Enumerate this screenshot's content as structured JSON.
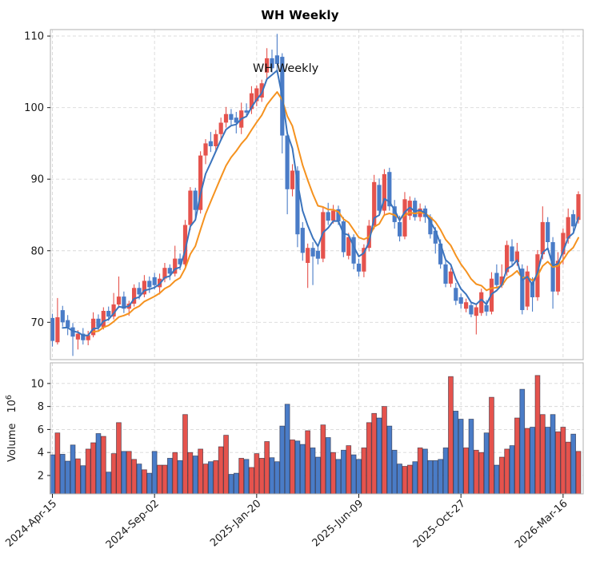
{
  "title": "WH  Weekly",
  "annotation": "WH  Weekly",
  "colors": {
    "up": "#e5534d",
    "down": "#4a7cc7",
    "ma_fast": "#3b74bd",
    "ma_slow": "#f5921f",
    "grid": "#d8d8d8",
    "spine": "#b0b0b0",
    "text": "#1a1a1a",
    "volume_bar_edge": "rgba(25,25,45,0.6)",
    "background": "#ffffff"
  },
  "price_axis": {
    "ticks": [
      70,
      80,
      90,
      100,
      110
    ],
    "range": [
      64.8,
      110.9
    ]
  },
  "volume_axis": {
    "label": "Volume",
    "unit_base": "10",
    "unit_exponent": "6",
    "ticks": [
      2,
      4,
      6,
      8,
      10
    ],
    "range": [
      0.4,
      11.8
    ]
  },
  "x_axis": {
    "tick_weeks": [
      0,
      20,
      40,
      60,
      80,
      100
    ],
    "tick_labels": [
      "2024-Apr-15",
      "2024-Sep-02",
      "2025-Jan-20",
      "2025-Jun-09",
      "2025-Oct-27",
      "2026-Mar-16"
    ]
  },
  "chart_data": {
    "type": "candlestick+volume",
    "title": "WH  Weekly",
    "interval": "weekly",
    "up_color_meaning": "close above open (red)",
    "down_color_meaning": "close below open (blue)",
    "moving_averages": [
      {
        "name": "fast",
        "period": 4,
        "method": "ema",
        "color": "#3b74bd"
      },
      {
        "name": "slow",
        "period": 10,
        "method": "ema",
        "color": "#f5921f"
      }
    ],
    "columns": [
      "date",
      "open",
      "high",
      "low",
      "close",
      "volume_millions"
    ],
    "candles": [
      [
        "2024-04-15",
        70.6,
        71.2,
        66.6,
        67.4,
        3.8
      ],
      [
        "2024-04-22",
        67.2,
        73.4,
        66.9,
        70.7,
        5.7
      ],
      [
        "2024-04-29",
        71.7,
        72.3,
        69.4,
        70.0,
        3.85
      ],
      [
        "2024-05-06",
        70.3,
        71.0,
        68.2,
        69.3,
        3.25
      ],
      [
        "2024-05-13",
        69.3,
        69.9,
        65.3,
        68.0,
        4.65
      ],
      [
        "2024-05-20",
        67.6,
        68.9,
        66.2,
        68.4,
        3.45
      ],
      [
        "2024-05-27",
        68.4,
        69.2,
        66.9,
        67.5,
        2.85
      ],
      [
        "2024-06-03",
        67.5,
        68.8,
        66.8,
        68.2,
        4.3
      ],
      [
        "2024-06-10",
        68.2,
        71.4,
        67.9,
        70.5,
        4.85
      ],
      [
        "2024-06-17",
        70.5,
        71.1,
        68.8,
        69.3,
        5.65
      ],
      [
        "2024-06-24",
        69.3,
        72.1,
        69.0,
        71.6,
        5.4
      ],
      [
        "2024-07-01",
        71.6,
        72.2,
        70.2,
        70.8,
        2.3
      ],
      [
        "2024-07-08",
        70.8,
        74.1,
        70.4,
        72.5,
        3.9
      ],
      [
        "2024-07-15",
        72.5,
        76.4,
        72.0,
        73.6,
        6.6
      ],
      [
        "2024-07-22",
        73.6,
        74.3,
        71.3,
        71.9,
        4.1
      ],
      [
        "2024-07-29",
        71.9,
        73.0,
        70.9,
        72.6,
        4.1
      ],
      [
        "2024-08-05",
        72.6,
        75.3,
        72.2,
        74.8,
        3.4
      ],
      [
        "2024-08-12",
        74.8,
        75.6,
        73.2,
        73.9,
        3.0
      ],
      [
        "2024-08-19",
        73.9,
        76.6,
        73.5,
        75.8,
        2.5
      ],
      [
        "2024-08-26",
        75.8,
        76.4,
        74.1,
        74.9,
        2.2
      ],
      [
        "2024-09-02",
        76.3,
        76.9,
        74.6,
        75.2,
        4.1
      ],
      [
        "2024-09-09",
        74.9,
        76.8,
        73.9,
        76.1,
        2.9
      ],
      [
        "2024-09-16",
        76.1,
        78.3,
        75.6,
        77.6,
        2.9
      ],
      [
        "2024-09-23",
        77.6,
        78.1,
        75.9,
        76.8,
        3.5
      ],
      [
        "2024-09-30",
        76.8,
        80.7,
        76.4,
        78.9,
        4.0
      ],
      [
        "2024-10-07",
        78.9,
        79.6,
        77.3,
        78.1,
        3.3
      ],
      [
        "2024-10-14",
        78.1,
        84.3,
        77.8,
        83.6,
        7.3
      ],
      [
        "2024-10-21",
        83.6,
        88.9,
        82.9,
        88.4,
        4.0
      ],
      [
        "2024-10-28",
        88.4,
        88.8,
        84.6,
        85.7,
        3.7
      ],
      [
        "2024-11-04",
        85.7,
        93.9,
        85.2,
        93.3,
        4.3
      ],
      [
        "2024-11-11",
        93.3,
        95.6,
        92.1,
        95.0,
        3.0
      ],
      [
        "2024-11-18",
        95.3,
        96.6,
        93.8,
        94.6,
        3.2
      ],
      [
        "2024-11-25",
        94.6,
        96.9,
        93.9,
        96.3,
        3.3
      ],
      [
        "2024-12-02",
        96.3,
        98.6,
        95.4,
        97.9,
        4.5
      ],
      [
        "2024-12-09",
        97.9,
        100.1,
        97.2,
        99.1,
        5.5
      ],
      [
        "2024-12-16",
        99.1,
        99.8,
        97.6,
        98.3,
        2.1
      ],
      [
        "2024-12-23",
        98.6,
        99.4,
        96.4,
        97.9,
        2.2
      ],
      [
        "2024-12-30",
        97.2,
        100.7,
        96.3,
        99.6,
        3.5
      ],
      [
        "2025-01-06",
        99.6,
        100.6,
        98.7,
        99.3,
        3.4
      ],
      [
        "2025-01-13",
        99.8,
        103.0,
        99.1,
        102.0,
        2.7
      ],
      [
        "2025-01-20",
        100.9,
        103.1,
        100.2,
        102.7,
        3.9
      ],
      [
        "2025-01-27",
        101.4,
        103.9,
        100.8,
        103.4,
        3.5
      ],
      [
        "2025-02-03",
        104.9,
        108.3,
        103.9,
        106.9,
        4.95
      ],
      [
        "2025-02-10",
        106.9,
        108.1,
        104.9,
        105.5,
        3.55
      ],
      [
        "2025-02-17",
        107.3,
        110.3,
        105.2,
        106.1,
        3.2
      ],
      [
        "2025-02-24",
        107.1,
        107.6,
        93.6,
        96.1,
        6.3
      ],
      [
        "2025-03-03",
        96.1,
        96.6,
        85.1,
        88.6,
        8.2
      ],
      [
        "2025-03-10",
        88.6,
        92.1,
        87.6,
        91.2,
        5.1
      ],
      [
        "2025-03-17",
        91.2,
        91.8,
        80.5,
        82.3,
        5.0
      ],
      [
        "2025-03-24",
        83.2,
        84.0,
        78.6,
        79.7,
        4.7
      ],
      [
        "2025-03-31",
        78.3,
        81.0,
        74.8,
        80.4,
        5.9
      ],
      [
        "2025-04-07",
        80.4,
        81.2,
        75.2,
        79.2,
        4.4
      ],
      [
        "2025-04-14",
        80.0,
        80.8,
        78.1,
        78.9,
        3.6
      ],
      [
        "2025-04-21",
        78.9,
        86.0,
        78.4,
        85.4,
        6.4
      ],
      [
        "2025-04-28",
        85.4,
        86.7,
        83.6,
        84.2,
        5.3
      ],
      [
        "2025-05-05",
        84.2,
        86.4,
        83.8,
        85.6,
        4.0
      ],
      [
        "2025-05-12",
        85.8,
        86.3,
        83.6,
        84.1,
        3.4
      ],
      [
        "2025-05-19",
        84.1,
        84.7,
        79.1,
        79.8,
        4.2
      ],
      [
        "2025-05-26",
        79.3,
        82.5,
        78.8,
        81.9,
        4.6
      ],
      [
        "2025-06-02",
        81.9,
        82.3,
        77.4,
        78.2,
        3.8
      ],
      [
        "2025-06-09",
        78.2,
        78.9,
        76.4,
        77.1,
        3.4
      ],
      [
        "2025-06-16",
        77.1,
        80.9,
        76.3,
        80.4,
        4.4
      ],
      [
        "2025-06-23",
        80.4,
        84.3,
        79.9,
        83.5,
        6.6
      ],
      [
        "2025-06-30",
        83.5,
        90.6,
        83.0,
        89.6,
        7.4
      ],
      [
        "2025-07-07",
        89.2,
        90.1,
        84.9,
        85.6,
        7.0
      ],
      [
        "2025-07-14",
        85.6,
        91.4,
        85.1,
        90.7,
        8.0
      ],
      [
        "2025-07-21",
        91.0,
        91.6,
        85.6,
        86.2,
        6.3
      ],
      [
        "2025-07-28",
        86.2,
        87.1,
        83.1,
        84.0,
        4.2
      ],
      [
        "2025-08-04",
        84.0,
        84.9,
        81.3,
        82.0,
        3.0
      ],
      [
        "2025-08-11",
        82.0,
        88.2,
        81.6,
        87.2,
        2.8
      ],
      [
        "2025-08-18",
        84.9,
        87.6,
        84.3,
        87.0,
        2.9
      ],
      [
        "2025-08-25",
        87.0,
        87.4,
        84.2,
        84.7,
        3.2
      ],
      [
        "2025-09-01",
        84.7,
        86.6,
        84.1,
        85.9,
        4.4
      ],
      [
        "2025-09-08",
        85.9,
        86.3,
        83.9,
        84.7,
        4.3
      ],
      [
        "2025-09-15",
        84.7,
        85.1,
        81.7,
        82.3,
        3.3
      ],
      [
        "2025-09-22",
        82.8,
        83.3,
        79.6,
        81.0,
        3.3
      ],
      [
        "2025-09-29",
        81.0,
        81.6,
        77.5,
        78.1,
        3.4
      ],
      [
        "2025-10-06",
        78.1,
        78.6,
        74.9,
        75.4,
        4.4
      ],
      [
        "2025-10-13",
        75.4,
        77.6,
        74.9,
        77.1,
        10.6
      ],
      [
        "2025-10-20",
        74.8,
        75.5,
        72.4,
        73.0,
        7.6
      ],
      [
        "2025-10-27",
        73.5,
        74.0,
        71.9,
        72.6,
        6.9
      ],
      [
        "2025-11-03",
        71.9,
        73.3,
        71.4,
        72.8,
        4.4
      ],
      [
        "2025-11-10",
        72.4,
        72.9,
        70.7,
        71.1,
        6.9
      ],
      [
        "2025-11-17",
        70.9,
        72.6,
        68.3,
        72.1,
        4.2
      ],
      [
        "2025-11-24",
        71.3,
        74.7,
        70.9,
        74.2,
        4.0
      ],
      [
        "2025-12-01",
        72.4,
        73.1,
        70.9,
        71.5,
        5.7
      ],
      [
        "2025-12-08",
        71.5,
        77.0,
        71.1,
        76.1,
        8.8
      ],
      [
        "2025-12-15",
        76.9,
        78.1,
        74.7,
        75.2,
        2.9
      ],
      [
        "2025-12-22",
        75.2,
        78.1,
        74.8,
        76.4,
        3.6
      ],
      [
        "2025-12-29",
        77.0,
        81.4,
        76.5,
        80.8,
        4.3
      ],
      [
        "2026-01-05",
        80.6,
        81.6,
        77.8,
        78.5,
        4.6
      ],
      [
        "2026-01-12",
        78.4,
        81.1,
        77.9,
        79.9,
        7.0
      ],
      [
        "2026-01-19",
        77.5,
        78.1,
        71.1,
        71.7,
        9.5
      ],
      [
        "2026-01-26",
        72.2,
        77.9,
        71.7,
        77.1,
        6.1
      ],
      [
        "2026-02-02",
        75.6,
        76.3,
        71.5,
        73.5,
        6.2
      ],
      [
        "2026-02-09",
        73.5,
        80.1,
        73.0,
        79.5,
        10.7
      ],
      [
        "2026-02-16",
        79.5,
        86.2,
        78.8,
        84.0,
        7.3
      ],
      [
        "2026-02-23",
        84.0,
        84.7,
        80.1,
        81.2,
        6.2
      ],
      [
        "2026-03-02",
        81.2,
        81.9,
        71.9,
        74.3,
        7.3
      ],
      [
        "2026-03-09",
        74.3,
        79.8,
        73.8,
        78.6,
        5.8
      ],
      [
        "2026-03-16",
        79.5,
        83.1,
        78.1,
        82.5,
        6.2
      ],
      [
        "2026-03-23",
        81.7,
        85.9,
        81.0,
        84.7,
        4.9
      ],
      [
        "2026-03-30",
        85.1,
        85.7,
        82.7,
        83.4,
        5.6
      ],
      [
        "2026-04-06",
        84.3,
        88.3,
        83.8,
        87.9,
        4.1
      ]
    ]
  }
}
